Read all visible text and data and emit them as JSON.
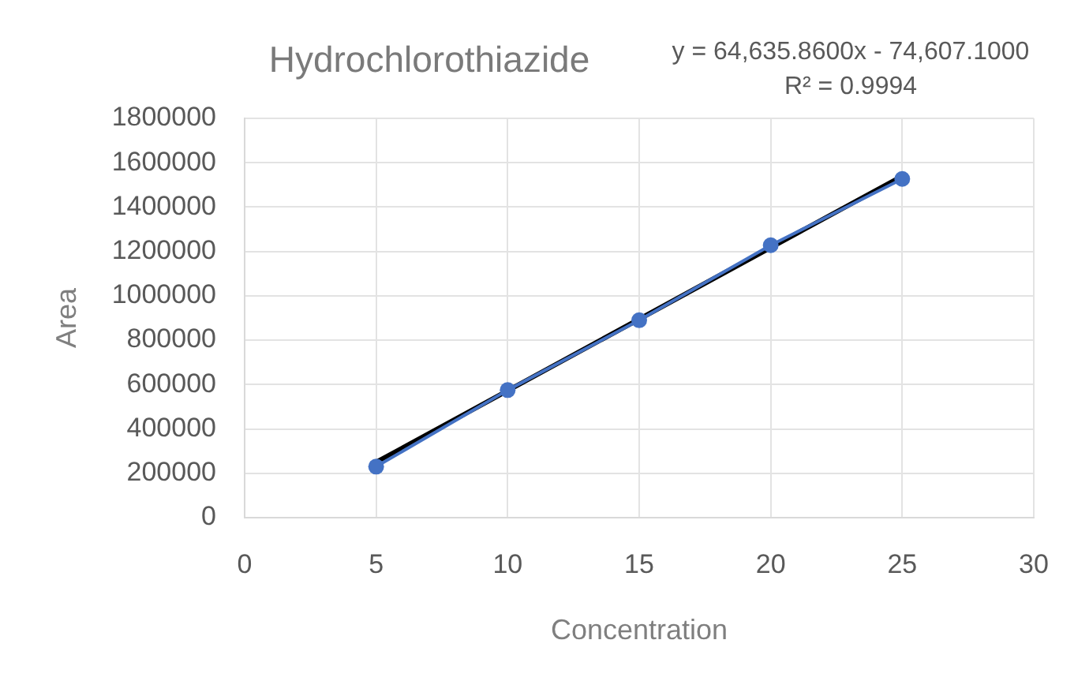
{
  "chart_data": {
    "type": "line",
    "title": "Hydrochlorothiazide",
    "xlabel": "Concentration",
    "ylabel": "Area",
    "annotations": [
      "y = 64,635.8600x - 74,607.1000",
      "R² = 0.9994"
    ],
    "series": [
      {
        "color": "#4472c4",
        "x": [
          5,
          10,
          15,
          20,
          25
        ],
        "values": [
          230000,
          575000,
          890000,
          1228000,
          1527000
        ]
      },
      {
        "color": "#000000",
        "x": [
          5,
          25
        ],
        "values": [
          250000,
          1540000
        ],
        "marker": "none"
      }
    ],
    "xlim": [
      0,
      30
    ],
    "xticks": [
      0,
      5,
      10,
      15,
      20,
      25,
      30
    ],
    "ylim": [
      0,
      1800000
    ],
    "yticks": [
      0,
      200000,
      400000,
      600000,
      800000,
      1000000,
      1200000,
      1400000,
      1600000,
      1800000
    ],
    "grid": true,
    "marker": "circle"
  }
}
